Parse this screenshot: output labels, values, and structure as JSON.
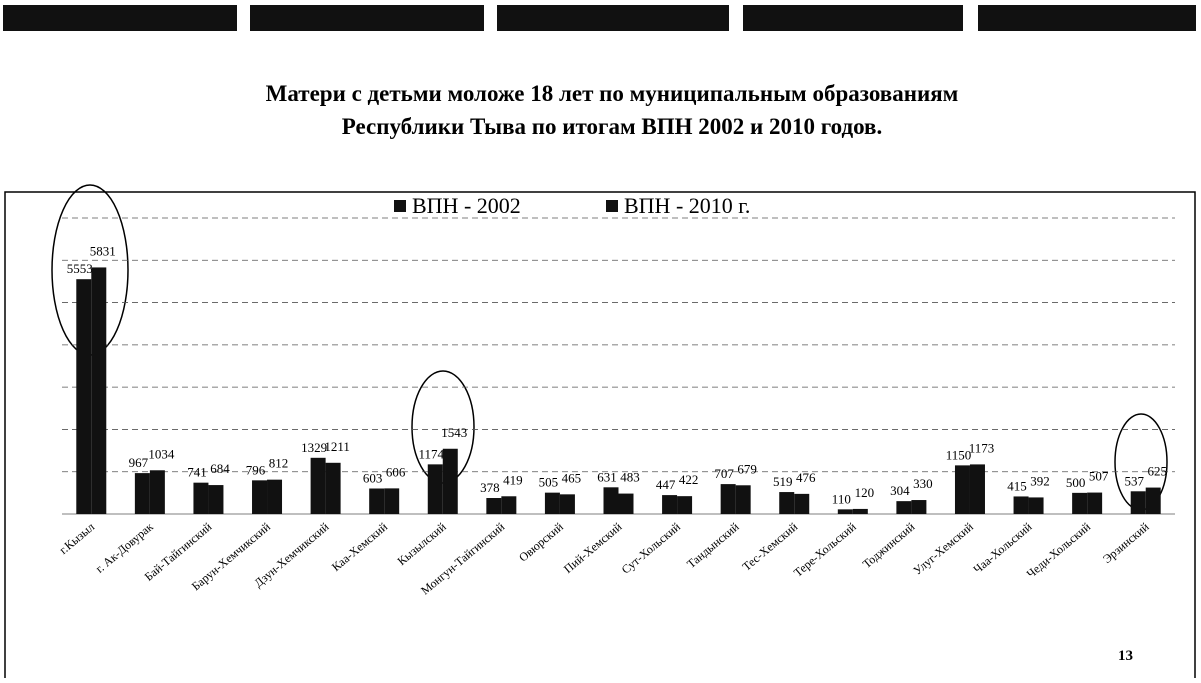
{
  "title": [
    "Матери с детьми моложе 18 лет по муниципальным образованиям",
    "Республики Тыва по итогам ВПН 2002 и 2010 годов."
  ],
  "page_number": "13",
  "chart_data": {
    "type": "bar",
    "categories": [
      "г.Кызыл",
      "г. Ак-Довурак",
      "Бай-Тайгинский",
      "Барун-Хемчикский",
      "Дзун-Хемчикский",
      "Каа-Хемский",
      "Кызылский",
      "Монгун-Тайгинский",
      "Овюрский",
      "Пий-Хемский",
      "Сут-Хольский",
      "Тандынский",
      "Тес-Хемский",
      "Тере-Хольский",
      "Тоджинский",
      "Улуг-Хемский",
      "Чаа-Хольский",
      "Чеди-Хольский",
      "Эрзинский"
    ],
    "series": [
      {
        "name": "ВПН - 2002",
        "color": "#111111",
        "values": [
          5553,
          967,
          741,
          796,
          1329,
          603,
          1174,
          378,
          505,
          631,
          447,
          707,
          519,
          110,
          304,
          1150,
          415,
          500,
          537
        ]
      },
      {
        "name": "ВПН - 2010 г.",
        "color": "#111111",
        "values": [
          5831,
          1034,
          684,
          812,
          1211,
          606,
          1543,
          419,
          465,
          483,
          422,
          679,
          476,
          120,
          330,
          1173,
          392,
          507,
          625
        ]
      }
    ],
    "ylim": [
      0,
      7000
    ],
    "yticks": [
      0,
      1000,
      2000,
      3000,
      4000,
      5000,
      6000,
      7000
    ],
    "grid": true
  }
}
